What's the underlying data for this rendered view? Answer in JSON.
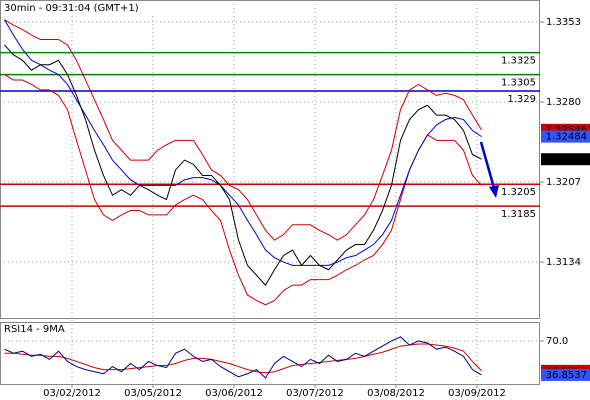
{
  "chart_data": [
    {
      "type": "line",
      "title": "30min - 09:31:04 (GMT+1)",
      "x": [
        0,
        1,
        2,
        3,
        4,
        5,
        6,
        7,
        8,
        9,
        10,
        11,
        12,
        13,
        14,
        15,
        16,
        17,
        18,
        19,
        20,
        21,
        22,
        23,
        24,
        25,
        26,
        27,
        28,
        29,
        30,
        31,
        32,
        33,
        34,
        35,
        36,
        37,
        38,
        39,
        40,
        41,
        42,
        43,
        44,
        45,
        46,
        47,
        48,
        49,
        50,
        51,
        52,
        53
      ],
      "xlim": [
        -0.5,
        59.5
      ],
      "ylim": [
        1.3083,
        1.3373
      ],
      "yticks": [
        1.3134,
        1.3207,
        {
          "value": 1.328,
          "label": "1.3280"
        },
        1.3353
      ],
      "grid": true,
      "levels": [
        {
          "value": 1.3325,
          "color": "#008000"
        },
        {
          "value": 1.3305,
          "color": "#008000"
        },
        {
          "value": 1.329,
          "color": "#0000cc"
        },
        {
          "value": 1.3205,
          "color": "#cc0000"
        },
        {
          "value": 1.3185,
          "color": "#cc0000"
        }
      ],
      "series": [
        {
          "color": "#cc0000",
          "tag_color": "#cc0000",
          "values": [
            1.3355,
            1.335,
            1.3346,
            1.3341,
            1.3337,
            1.3337,
            1.3337,
            1.3332,
            1.3318,
            1.33,
            1.3282,
            1.3264,
            1.3245,
            1.3236,
            1.3227,
            1.3227,
            1.3227,
            1.3236,
            1.3241,
            1.3245,
            1.3245,
            1.3245,
            1.3232,
            1.3218,
            1.3213,
            1.3204,
            1.32,
            1.3191,
            1.3177,
            1.3163,
            1.3154,
            1.3159,
            1.3168,
            1.3168,
            1.3168,
            1.3163,
            1.3159,
            1.3154,
            1.3159,
            1.3168,
            1.3177,
            1.3191,
            1.3213,
            1.3236,
            1.3273,
            1.3291,
            1.3296,
            1.3291,
            1.3286,
            1.3288,
            1.3286,
            1.3282,
            1.3268,
            1.32546
          ]
        },
        {
          "color": "#cc0000",
          "values": [
            1.3305,
            1.33,
            1.33,
            1.3296,
            1.3291,
            1.3291,
            1.3286,
            1.3273,
            1.3245,
            1.3218,
            1.3191,
            1.3177,
            1.3172,
            1.3177,
            1.3181,
            1.3181,
            1.3177,
            1.3177,
            1.3177,
            1.3186,
            1.3191,
            1.3195,
            1.3191,
            1.3181,
            1.3172,
            1.3145,
            1.3122,
            1.3104,
            1.3099,
            1.3095,
            1.3099,
            1.3108,
            1.3113,
            1.3113,
            1.3118,
            1.3118,
            1.3118,
            1.3122,
            1.3127,
            1.3131,
            1.3136,
            1.314,
            1.315,
            1.3163,
            1.3191,
            1.3218,
            1.3236,
            1.325,
            1.3245,
            1.3245,
            1.3245,
            1.3236,
            1.3213,
            1.3204
          ]
        },
        {
          "color": "#0000cc",
          "tag_color": "#3355ff",
          "values": [
            1.3355,
            1.3341,
            1.3328,
            1.3318,
            1.3314,
            1.3309,
            1.3305,
            1.3296,
            1.3282,
            1.3268,
            1.3254,
            1.3241,
            1.3227,
            1.3218,
            1.3209,
            1.3204,
            1.3204,
            1.3204,
            1.3204,
            1.3204,
            1.3209,
            1.3211,
            1.3211,
            1.3209,
            1.3204,
            1.3195,
            1.3186,
            1.3172,
            1.3159,
            1.3145,
            1.3138,
            1.3134,
            1.3131,
            1.3131,
            1.3131,
            1.3131,
            1.3131,
            1.3134,
            1.3138,
            1.314,
            1.3145,
            1.315,
            1.3159,
            1.3172,
            1.3195,
            1.3218,
            1.3236,
            1.325,
            1.3259,
            1.3264,
            1.3266,
            1.3264,
            1.3254,
            1.32484
          ]
        },
        {
          "color": "#000000",
          "tag_color": "#000000",
          "values": [
            1.3332,
            1.3323,
            1.3318,
            1.3309,
            1.3314,
            1.3314,
            1.3318,
            1.3305,
            1.3286,
            1.3264,
            1.3236,
            1.3213,
            1.3195,
            1.32,
            1.3195,
            1.3204,
            1.32,
            1.3195,
            1.3191,
            1.3218,
            1.3227,
            1.3223,
            1.3213,
            1.3213,
            1.3204,
            1.3191,
            1.3154,
            1.3131,
            1.3122,
            1.3113,
            1.3127,
            1.314,
            1.3145,
            1.3131,
            1.314,
            1.3131,
            1.3127,
            1.3136,
            1.3145,
            1.315,
            1.315,
            1.3163,
            1.3181,
            1.3204,
            1.3245,
            1.3264,
            1.3273,
            1.3277,
            1.3268,
            1.3268,
            1.3264,
            1.3254,
            1.3232,
            1.32278
          ]
        }
      ]
    },
    {
      "type": "line",
      "title": "RSI14 - 9MA",
      "x": [
        0,
        1,
        2,
        3,
        4,
        5,
        6,
        7,
        8,
        9,
        10,
        11,
        12,
        13,
        14,
        15,
        16,
        17,
        18,
        19,
        20,
        21,
        22,
        23,
        24,
        25,
        26,
        27,
        28,
        29,
        30,
        31,
        32,
        33,
        34,
        35,
        36,
        37,
        38,
        39,
        40,
        41,
        42,
        43,
        44,
        45,
        46,
        47,
        48,
        49,
        50,
        51,
        52,
        53
      ],
      "xlim": [
        -0.5,
        59.5
      ],
      "xticks": [
        {
          "value": 7.5,
          "label": "03/02/2012"
        },
        {
          "value": 16.5,
          "label": "03/05/2012"
        },
        {
          "value": 25.5,
          "label": "03/06/2012"
        },
        {
          "value": 34.5,
          "label": "03/07/2012"
        },
        {
          "value": 43.5,
          "label": "03/08/2012"
        },
        {
          "value": 52.5,
          "label": "03/09/2012"
        }
      ],
      "ylim": [
        28,
        88.5
      ],
      "yticks": [
        {
          "value": 70,
          "label": "70.0"
        }
      ],
      "grid": true,
      "series": [
        {
          "color": "#cc0000",
          "tag_color": "#cc0000",
          "values": [
            58,
            58,
            57,
            56,
            56,
            55,
            55,
            53,
            50,
            47,
            44,
            42,
            42,
            42,
            43,
            44,
            45,
            46,
            46,
            48,
            51,
            53,
            53,
            52,
            50,
            48,
            45,
            42,
            40,
            39,
            40,
            43,
            46,
            47,
            48,
            49,
            50,
            51,
            52,
            53,
            55,
            57,
            59,
            62,
            65,
            66,
            67,
            67,
            66,
            65,
            63,
            60,
            50,
            40.8253
          ]
        },
        {
          "color": "#00008b",
          "tag_color": "#3355ff",
          "values": [
            62,
            58,
            60,
            55,
            57,
            52,
            60,
            50,
            45,
            42,
            40,
            38,
            45,
            40,
            48,
            42,
            50,
            46,
            44,
            58,
            62,
            55,
            50,
            52,
            45,
            40,
            35,
            38,
            42,
            34,
            48,
            55,
            50,
            45,
            52,
            48,
            56,
            50,
            52,
            58,
            55,
            60,
            65,
            70,
            74,
            66,
            70,
            68,
            62,
            64,
            60,
            55,
            42,
            36.8537
          ]
        }
      ]
    }
  ]
}
